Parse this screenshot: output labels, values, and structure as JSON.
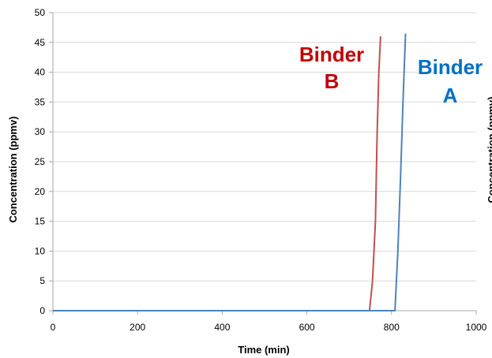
{
  "chart_data": {
    "type": "line",
    "xlabel": "Time (min)",
    "ylabel": "Concentration (ppmv)",
    "clipped_right_ylabel": "Concentration (ppmv)",
    "xlim": [
      0,
      1000
    ],
    "ylim": [
      0,
      50
    ],
    "x_ticks": [
      0,
      200,
      400,
      600,
      800,
      1000
    ],
    "y_ticks": [
      0,
      5,
      10,
      15,
      20,
      25,
      30,
      35,
      40,
      45,
      50
    ],
    "grid": "horizontal",
    "series": [
      {
        "label": "Binder B",
        "color": "#c0504d",
        "points": [
          [
            0,
            0
          ],
          [
            748,
            0
          ],
          [
            755,
            5
          ],
          [
            762,
            15
          ],
          [
            766,
            30
          ],
          [
            770,
            40
          ],
          [
            774,
            46
          ]
        ]
      },
      {
        "label": "Binder A",
        "color": "#4f81bd",
        "points": [
          [
            0,
            0
          ],
          [
            808,
            0
          ],
          [
            815,
            10
          ],
          [
            821,
            22
          ],
          [
            827,
            35
          ],
          [
            833,
            46.5
          ]
        ]
      }
    ],
    "annotations": [
      {
        "lines": [
          "Binder",
          "B"
        ],
        "color": "#c00000"
      },
      {
        "lines": [
          "Binder",
          "A"
        ],
        "color": "#0070c0"
      }
    ]
  }
}
